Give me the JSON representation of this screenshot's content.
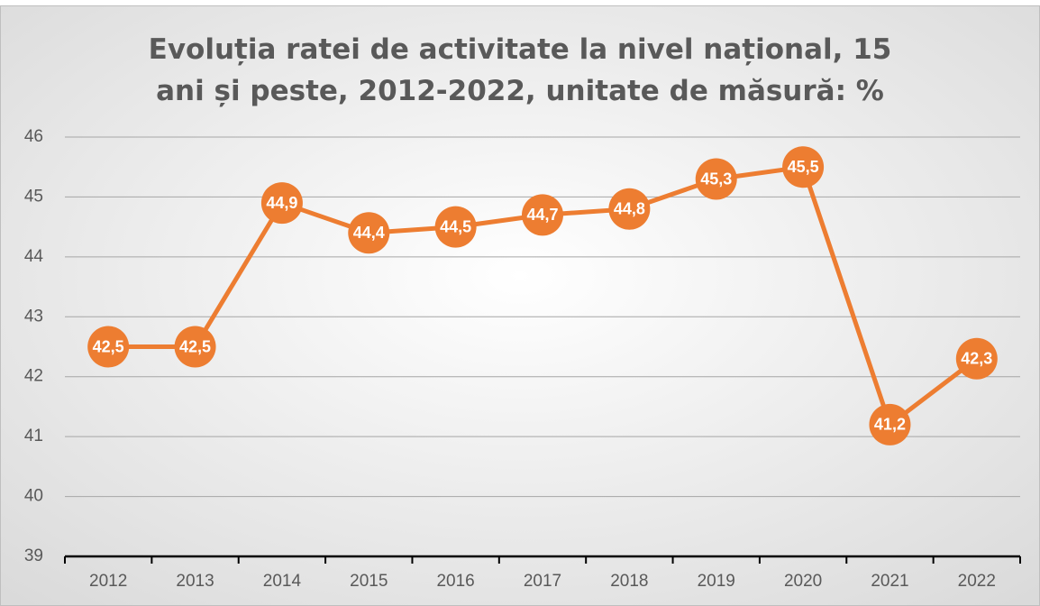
{
  "chart_data": {
    "type": "line",
    "title": "Evoluția ratei de activitate la nivel național, 15 ani și peste, 2012-2022, unitate de măsură: %",
    "categories": [
      "2012",
      "2013",
      "2014",
      "2015",
      "2016",
      "2017",
      "2018",
      "2019",
      "2020",
      "2021",
      "2022"
    ],
    "values": [
      42.5,
      42.5,
      44.9,
      44.4,
      44.5,
      44.7,
      44.8,
      45.3,
      45.5,
      41.2,
      42.3
    ],
    "value_labels": [
      "42,5",
      "42,5",
      "44,9",
      "44,4",
      "44,5",
      "44,7",
      "44,8",
      "45,3",
      "45,5",
      "41,2",
      "42,3"
    ],
    "color": "#ed7d31",
    "ylim": [
      39,
      46
    ],
    "yticks": [
      39,
      40,
      41,
      42,
      43,
      44,
      45,
      46
    ],
    "grid": true
  }
}
